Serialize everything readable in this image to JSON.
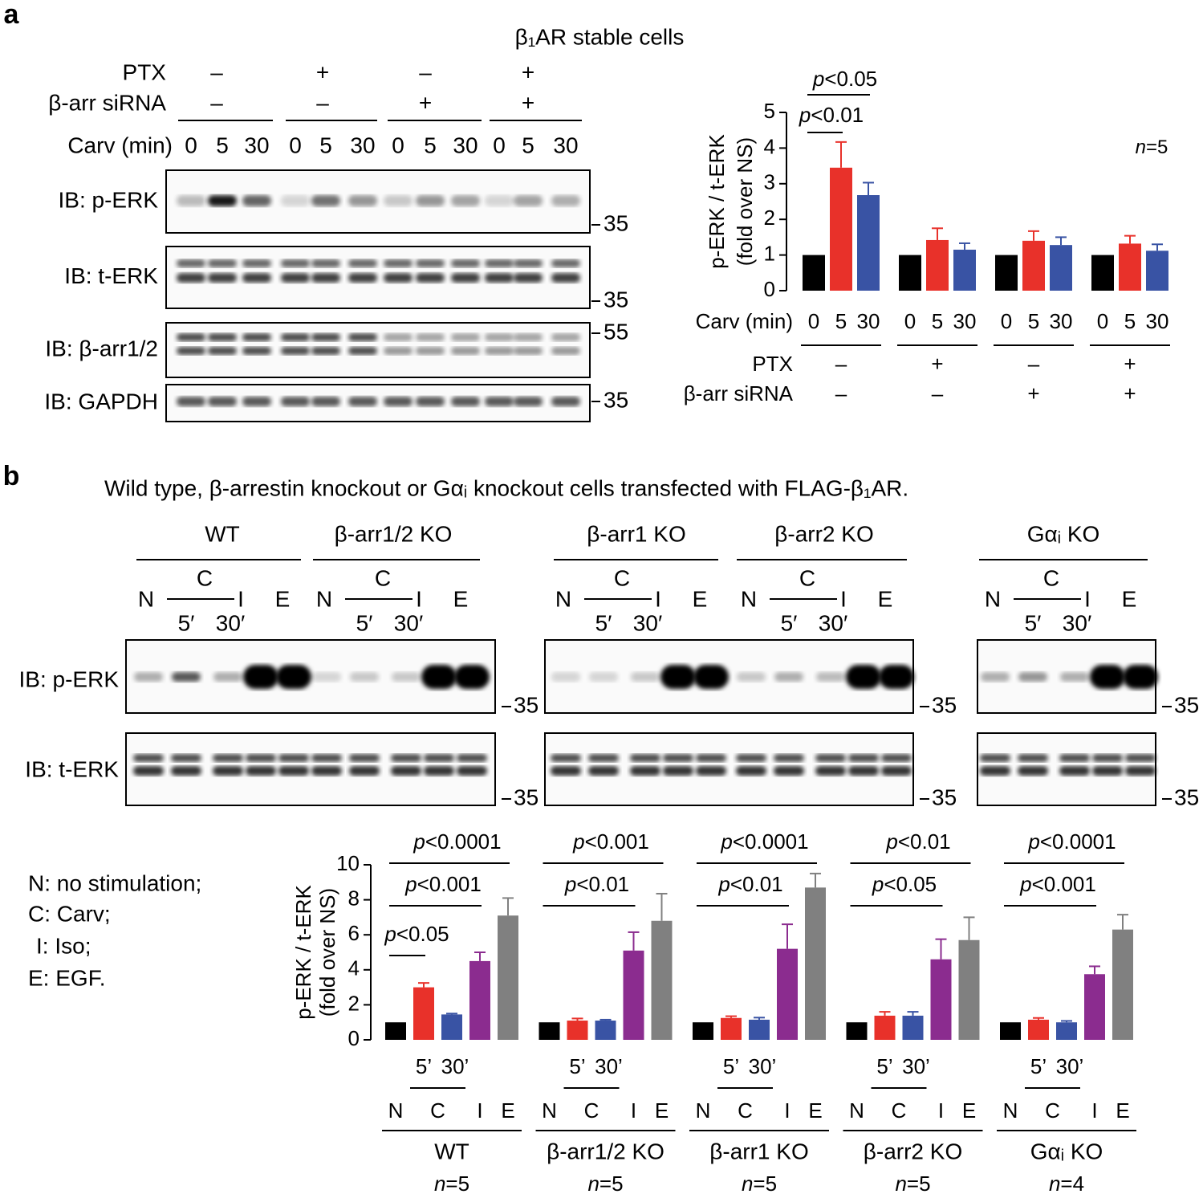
{
  "panel_a": {
    "label": "a",
    "title": "β₁AR stable cells",
    "conditions": [
      {
        "name": "PTX",
        "values": [
          "–",
          "+",
          "–",
          "+"
        ]
      },
      {
        "name": "β-arr siRNA",
        "values": [
          "–",
          "–",
          "+",
          "+"
        ]
      }
    ],
    "time_label": "Carv (min)",
    "times": [
      "0",
      "5",
      "30"
    ],
    "blots": [
      {
        "label": "IB: p-ERK",
        "marker": "35"
      },
      {
        "label": "IB: t-ERK",
        "marker": "35"
      },
      {
        "label": "IB: β-arr1/2",
        "marker": "55"
      },
      {
        "label": "IB: GAPDH",
        "marker": "35"
      }
    ]
  },
  "panel_b": {
    "label": "b",
    "title": "Wild type, β-arrestin knockout or Gαᵢ knockout cells transfected with FLAG-β₁AR.",
    "groups": [
      "WT",
      "β-arr1/2 KO",
      "β-arr1 KO",
      "β-arr2 KO",
      "Gαᵢ KO"
    ],
    "lanes": [
      "N",
      "C",
      "I",
      "E"
    ],
    "times": [
      "5′",
      "30′"
    ],
    "blots": [
      {
        "label": "IB: p-ERK",
        "marker": "35"
      },
      {
        "label": "IB: t-ERK",
        "marker": "35"
      }
    ],
    "key": [
      "N: no stimulation;",
      "C: Carv;",
      "I: Iso;",
      "E: EGF."
    ]
  },
  "chart_data": [
    {
      "type": "bar",
      "y_label": [
        "p-ERK / t-ERK",
        "(fold over NS)"
      ],
      "x_label": "Carv (min)",
      "conditions": [
        {
          "name": "PTX",
          "values": [
            "–",
            "+",
            "–",
            "+"
          ]
        },
        {
          "name": "β-arr siRNA",
          "values": [
            "–",
            "–",
            "+",
            "+"
          ]
        }
      ],
      "series": [
        {
          "name": "0",
          "color": "#000000",
          "values": [
            1,
            1,
            1,
            1
          ]
        },
        {
          "name": "5",
          "color": "#e8312a",
          "values": [
            3.45,
            1.42,
            1.4,
            1.32
          ],
          "errors": [
            0.72,
            0.33,
            0.27,
            0.22
          ]
        },
        {
          "name": "30",
          "color": "#3953a4",
          "values": [
            2.68,
            1.15,
            1.28,
            1.12
          ],
          "errors": [
            0.35,
            0.18,
            0.22,
            0.18
          ]
        }
      ],
      "ylim": [
        0,
        5
      ],
      "yticks": [
        0,
        1,
        2,
        3,
        4,
        5
      ],
      "annotations": [
        "p<0.05",
        "p<0.01"
      ],
      "n_label": "n=5"
    },
    {
      "type": "bar",
      "y_label": [
        "p-ERK / t-ERK",
        "(fold over NS)"
      ],
      "categories": [
        "WT",
        "β-arr1/2 KO",
        "β-arr1 KO",
        "β-arr2 KO",
        "Gαᵢ KO"
      ],
      "carv_label": "C",
      "series": [
        {
          "name": "N",
          "color": "#000000",
          "values": [
            1,
            1,
            1,
            1,
            1
          ]
        },
        {
          "name": "5’",
          "color": "#e8312a",
          "values": [
            3.0,
            1.1,
            1.25,
            1.38,
            1.15
          ],
          "errors": [
            0.25,
            0.12,
            0.1,
            0.22,
            0.1
          ]
        },
        {
          "name": "30’",
          "color": "#3953a4",
          "values": [
            1.45,
            1.1,
            1.15,
            1.38,
            1.0
          ],
          "errors": [
            0.05,
            0.05,
            0.12,
            0.22,
            0.08
          ]
        },
        {
          "name": "I",
          "color": "#8b2c8f",
          "values": [
            4.5,
            5.1,
            5.2,
            4.6,
            3.75
          ],
          "errors": [
            0.5,
            1.05,
            1.4,
            1.15,
            0.45
          ]
        },
        {
          "name": "E",
          "color": "#808080",
          "values": [
            7.1,
            6.8,
            8.7,
            5.7,
            6.3
          ],
          "errors": [
            1.0,
            1.55,
            0.8,
            1.3,
            0.85
          ]
        }
      ],
      "ylim": [
        0,
        10
      ],
      "yticks": [
        0,
        2,
        4,
        6,
        8,
        10
      ],
      "annotations": [
        [
          "p<0.0001",
          "p<0.001",
          "p<0.05"
        ],
        [
          "p<0.001",
          "p<0.01"
        ],
        [
          "p<0.0001",
          "p<0.01"
        ],
        [
          "p<0.01",
          "p<0.05"
        ],
        [
          "p<0.0001",
          "p<0.001"
        ]
      ],
      "n_labels": [
        "n=5",
        "n=5",
        "n=5",
        "n=5",
        "n=4"
      ]
    }
  ]
}
